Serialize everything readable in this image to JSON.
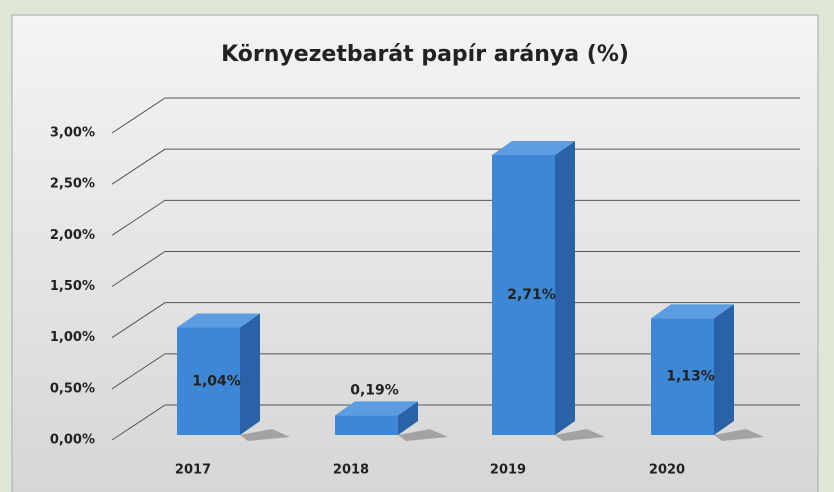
{
  "chart_data": {
    "type": "bar3d",
    "title": "Környezetbarát papír aránya (%)",
    "categories": [
      "2017",
      "2018",
      "2019",
      "2020"
    ],
    "values": [
      1.04,
      0.19,
      2.71,
      1.13
    ],
    "value_labels": [
      "1,04%",
      "0,19%",
      "2,71%",
      "1,13%"
    ],
    "color": "#3d87d4",
    "ylim": [
      0,
      3
    ],
    "yticks": [
      {
        "value": 0,
        "label": "0,00%"
      },
      {
        "value": 0.5,
        "label": "0,50%"
      },
      {
        "value": 1,
        "label": "1,00%"
      },
      {
        "value": 1.5,
        "label": "1,50%"
      },
      {
        "value": 2,
        "label": "2,00%"
      },
      {
        "value": 2.5,
        "label": "2,50%"
      },
      {
        "value": 3,
        "label": "3,00%"
      }
    ],
    "grid": true
  }
}
